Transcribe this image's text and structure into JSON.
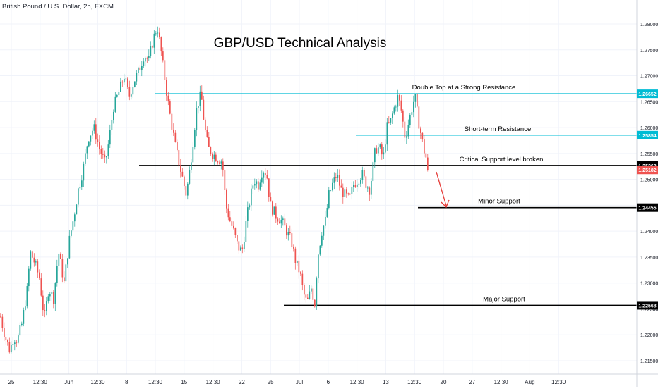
{
  "chart_data": {
    "type": "candlestick",
    "symbol_label": "British Pound / U.S. Dollar, 2h, FXCM",
    "title": "GBP/USD Technical Analysis",
    "ylim": [
      1.2135,
      1.2825
    ],
    "y_ticks": [
      "1.28000",
      "1.27500",
      "1.27000",
      "1.26500",
      "1.26000",
      "1.25500",
      "1.25000",
      "1.24500",
      "1.24000",
      "1.23500",
      "1.23000",
      "1.22500",
      "1.22000",
      "1.21500"
    ],
    "x_ticks": [
      "25",
      "12:30",
      "Jun",
      "12:30",
      "8",
      "12:30",
      "15",
      "12:30",
      "22",
      "25",
      "Jul",
      "6",
      "12:30",
      "13",
      "12:30",
      "20",
      "27",
      "12:30",
      "Aug",
      "12:30"
    ],
    "colors": {
      "up": "#26a69a",
      "down": "#ef5350",
      "resistance": "#00bcd4",
      "support": "#000000",
      "arrow": "#e53935"
    },
    "levels": [
      {
        "label": "Double Top at a Strong Resistance",
        "value": "1.26652",
        "price": 1.26652,
        "style": "resistance"
      },
      {
        "label": "Short-term Resistance",
        "value": "1.25854",
        "price": 1.25854,
        "style": "resistance"
      },
      {
        "label": "Critical Support level broken",
        "value": "1.25268",
        "price": 1.25268,
        "style": "support"
      },
      {
        "label": "Minor Support",
        "value": "1.24455",
        "price": 1.24455,
        "style": "support"
      },
      {
        "label": "Major Support",
        "value": "1.22568",
        "price": 1.22568,
        "style": "support"
      }
    ],
    "last_price": "1.25182",
    "last_price_value": 1.25182,
    "price_path": [
      [
        0,
        1.2235
      ],
      [
        3,
        1.2215
      ],
      [
        8,
        1.219
      ],
      [
        13,
        1.217
      ],
      [
        18,
        1.2195
      ],
      [
        24,
        1.219
      ],
      [
        30,
        1.222
      ],
      [
        38,
        1.229
      ],
      [
        42,
        1.236
      ],
      [
        48,
        1.234
      ],
      [
        55,
        1.231
      ],
      [
        62,
        1.223
      ],
      [
        68,
        1.229
      ],
      [
        75,
        1.227
      ],
      [
        82,
        1.236
      ],
      [
        90,
        1.23
      ],
      [
        97,
        1.238
      ],
      [
        104,
        1.243
      ],
      [
        110,
        1.248
      ],
      [
        117,
        1.252
      ],
      [
        124,
        1.258
      ],
      [
        132,
        1.26
      ],
      [
        140,
        1.256
      ],
      [
        148,
        1.253
      ],
      [
        153,
        1.257
      ],
      [
        160,
        1.264
      ],
      [
        168,
        1.267
      ],
      [
        175,
        1.27
      ],
      [
        182,
        1.266
      ],
      [
        189,
        1.269
      ],
      [
        196,
        1.271
      ],
      [
        203,
        1.274
      ],
      [
        210,
        1.273
      ],
      [
        216,
        1.277
      ],
      [
        222,
        1.2795
      ],
      [
        227,
        1.275
      ],
      [
        233,
        1.269
      ],
      [
        238,
        1.264
      ],
      [
        243,
        1.26
      ],
      [
        248,
        1.256
      ],
      [
        253,
        1.253
      ],
      [
        258,
        1.25
      ],
      [
        263,
        1.247
      ],
      [
        268,
        1.252
      ],
      [
        273,
        1.258
      ],
      [
        278,
        1.264
      ],
      [
        284,
        1.2665
      ],
      [
        289,
        1.26
      ],
      [
        294,
        1.256
      ],
      [
        300,
        1.255
      ],
      [
        308,
        1.254
      ],
      [
        314,
        1.2535
      ],
      [
        319,
        1.245
      ],
      [
        325,
        1.242
      ],
      [
        330,
        1.24
      ],
      [
        336,
        1.237
      ],
      [
        342,
        1.236
      ],
      [
        348,
        1.242
      ],
      [
        353,
        1.246
      ],
      [
        359,
        1.25
      ],
      [
        365,
        1.249
      ],
      [
        371,
        1.252
      ],
      [
        377,
        1.251
      ],
      [
        382,
        1.245
      ],
      [
        390,
        1.243
      ],
      [
        398,
        1.242
      ],
      [
        405,
        1.24
      ],
      [
        412,
        1.238
      ],
      [
        418,
        1.234
      ],
      [
        424,
        1.232
      ],
      [
        429,
        1.228
      ],
      [
        434,
        1.226
      ],
      [
        440,
        1.229
      ],
      [
        445,
        1.226
      ],
      [
        449,
        1.235
      ],
      [
        455,
        1.24
      ],
      [
        460,
        1.242
      ],
      [
        465,
        1.247
      ],
      [
        470,
        1.249
      ],
      [
        476,
        1.251
      ],
      [
        482,
        1.248
      ],
      [
        488,
        1.247
      ],
      [
        494,
        1.246
      ],
      [
        500,
        1.249
      ],
      [
        506,
        1.25
      ],
      [
        512,
        1.251
      ],
      [
        518,
        1.249
      ],
      [
        523,
        1.248
      ],
      [
        527,
        1.252
      ],
      [
        531,
        1.256
      ],
      [
        537,
        1.256
      ],
      [
        542,
        1.254
      ],
      [
        547,
        1.26
      ],
      [
        552,
        1.261
      ],
      [
        558,
        1.264
      ],
      [
        563,
        1.266
      ],
      [
        568,
        1.263
      ],
      [
        573,
        1.258
      ],
      [
        578,
        1.261
      ],
      [
        583,
        1.264
      ],
      [
        587,
        1.266
      ],
      [
        591,
        1.262
      ],
      [
        595,
        1.259
      ],
      [
        599,
        1.256
      ],
      [
        603,
        1.254
      ],
      [
        607,
        1.2518
      ]
    ]
  }
}
